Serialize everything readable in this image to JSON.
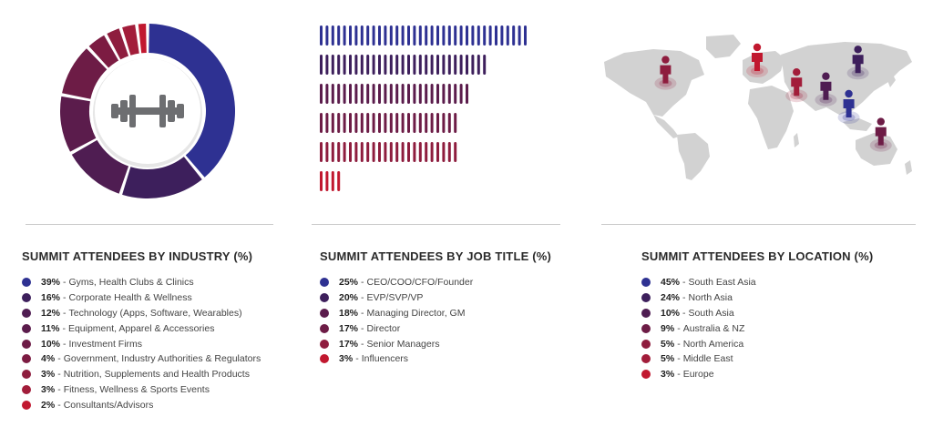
{
  "chart_data": [
    {
      "type": "pie",
      "title": "SUMMIT ATTENDEES BY INDUSTRY (%)",
      "categories": [
        "Gyms, Health Clubs & Clinics",
        "Corporate Health & Wellness",
        "Technology (Apps, Software, Wearables)",
        "Equipment, Apparel & Accessories",
        "Investment Firms",
        "Government, Industry Authorities & Regulators",
        "Nutrition, Supplements and Health Products",
        "Fitness, Wellness & Sports Events",
        "Consultants/Advisors"
      ],
      "values": [
        39,
        16,
        12,
        11,
        10,
        4,
        3,
        3,
        2
      ],
      "labels": [
        "39%",
        "16%",
        "12%",
        "11%",
        "10%",
        "4%",
        "3%",
        "3%",
        "2%"
      ],
      "colors": [
        "#2e3192",
        "#3d1f5c",
        "#4f1d52",
        "#5b1c4c",
        "#6d1c46",
        "#7c1c42",
        "#8e1d3e",
        "#a21d3a",
        "#c1182f"
      ],
      "center_icon": "dumbbell-icon"
    },
    {
      "type": "bar",
      "orientation": "horizontal",
      "title": "SUMMIT ATTENDEES BY JOB TITLE (%)",
      "categories": [
        "CEO/COO/CFO/Founder",
        "EVP/SVP/VP",
        "Managing Director, GM",
        "Director",
        "Senior Managers",
        "Influencers"
      ],
      "values": [
        25,
        20,
        18,
        17,
        17,
        3
      ],
      "labels": [
        "25%",
        "20%",
        "18%",
        "17%",
        "17%",
        "3%"
      ],
      "colors": [
        "#2e3192",
        "#3d1f5c",
        "#5b1c4c",
        "#6d1c46",
        "#8e1d3e",
        "#c1182f"
      ]
    },
    {
      "type": "map",
      "title": "SUMMIT ATTENDEES BY LOCATION (%)",
      "categories": [
        "South East Asia",
        "North Asia",
        "South Asia",
        "Australia & NZ",
        "North America",
        "Middle East",
        "Europe"
      ],
      "values": [
        45,
        24,
        10,
        9,
        5,
        5,
        3
      ],
      "labels": [
        "45%",
        "24%",
        "10%",
        "9%",
        "5%",
        "5%",
        "3%"
      ],
      "colors": [
        "#2e3192",
        "#3d1f5c",
        "#4f1d52",
        "#6d1c46",
        "#8e1d3e",
        "#a21d3a",
        "#c1182f"
      ],
      "marker_icon": "person-marker-icon"
    }
  ]
}
